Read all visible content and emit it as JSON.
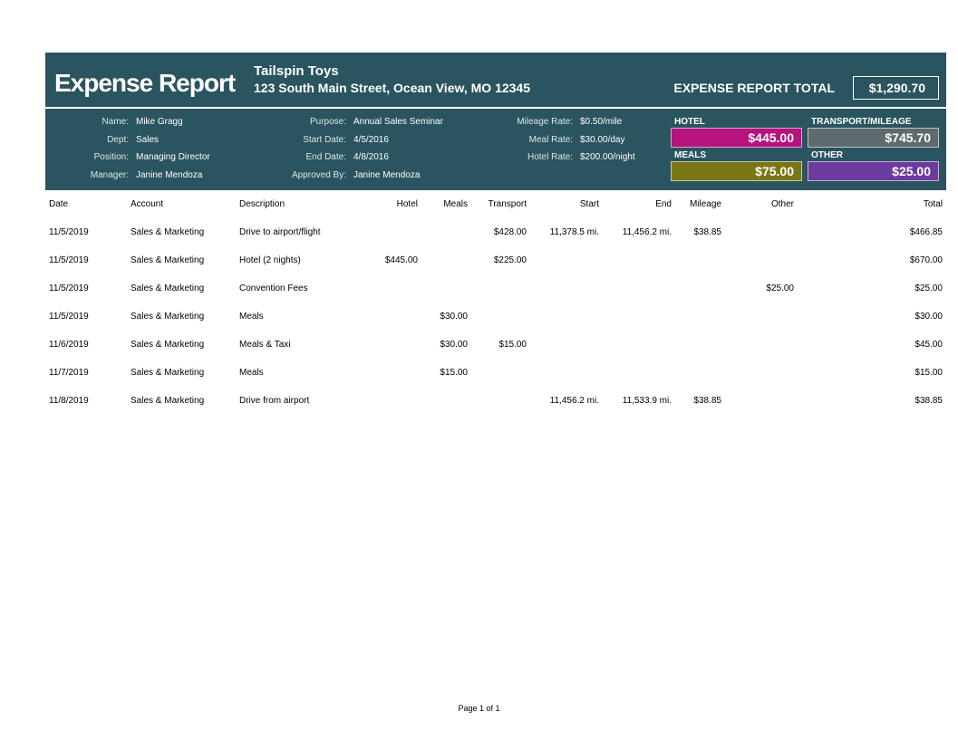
{
  "report": {
    "title": "Expense Report",
    "company_name": "Tailspin Toys",
    "company_address": "123 South Main Street, Ocean View, MO  12345",
    "total_label": "EXPENSE REPORT TOTAL",
    "total_value": "$1,290.70"
  },
  "labels": {
    "name": "Name:",
    "dept": "Dept:",
    "position": "Position:",
    "manager": "Manager:",
    "purpose": "Purpose:",
    "start_date": "Start Date:",
    "end_date": "End Date:",
    "approved_by": "Approved By:",
    "mileage_rate": "Mileage Rate:",
    "meal_rate": "Meal Rate:",
    "hotel_rate": "Hotel Rate:"
  },
  "info": {
    "name": "Mike Gragg",
    "dept": "Sales",
    "position": "Managing Director",
    "manager": "Janine Mendoza",
    "purpose": "Annual Sales Seminar",
    "start_date": "4/5/2016",
    "end_date": "4/8/2016",
    "approved_by": "Janine Mendoza",
    "mileage_rate": "$0.50/mile",
    "meal_rate": "$30.00/day",
    "hotel_rate": "$200.00/night"
  },
  "summary": {
    "hotel": {
      "label": "HOTEL",
      "value": "$445.00",
      "bg": "#b5137d"
    },
    "transport": {
      "label": "TRANSPORT/MILEAGE",
      "value": "$745.70",
      "bg": "#5e6a6d"
    },
    "meals": {
      "label": "MEALS",
      "value": "$75.00",
      "bg": "#7a7616"
    },
    "other": {
      "label": "OTHER",
      "value": "$25.00",
      "bg": "#6d3a9e"
    }
  },
  "columns": {
    "date": "Date",
    "account": "Account",
    "description": "Description",
    "hotel": "Hotel",
    "meals": "Meals",
    "transport": "Transport",
    "start": "Start",
    "end": "End",
    "mileage": "Mileage",
    "other": "Other",
    "total": "Total"
  },
  "rows": [
    {
      "date": "11/5/2019",
      "account": "Sales & Marketing",
      "description": "Drive to airport/flight",
      "hotel": "",
      "meals": "",
      "transport": "$428.00",
      "start": "11,378.5 mi.",
      "end": "11,456.2 mi.",
      "mileage": "$38.85",
      "other": "",
      "total": "$466.85"
    },
    {
      "date": "11/5/2019",
      "account": "Sales & Marketing",
      "description": "Hotel (2 nights)",
      "hotel": "$445.00",
      "meals": "",
      "transport": "$225.00",
      "start": "",
      "end": "",
      "mileage": "",
      "other": "",
      "total": "$670.00"
    },
    {
      "date": "11/5/2019",
      "account": "Sales & Marketing",
      "description": "Convention Fees",
      "hotel": "",
      "meals": "",
      "transport": "",
      "start": "",
      "end": "",
      "mileage": "",
      "other": "$25.00",
      "total": "$25.00"
    },
    {
      "date": "11/5/2019",
      "account": "Sales & Marketing",
      "description": "Meals",
      "hotel": "",
      "meals": "$30.00",
      "transport": "",
      "start": "",
      "end": "",
      "mileage": "",
      "other": "",
      "total": "$30.00"
    },
    {
      "date": "11/6/2019",
      "account": "Sales & Marketing",
      "description": "Meals & Taxi",
      "hotel": "",
      "meals": "$30.00",
      "transport": "$15.00",
      "start": "",
      "end": "",
      "mileage": "",
      "other": "",
      "total": "$45.00"
    },
    {
      "date": "11/7/2019",
      "account": "Sales & Marketing",
      "description": "Meals",
      "hotel": "",
      "meals": "$15.00",
      "transport": "",
      "start": "",
      "end": "",
      "mileage": "",
      "other": "",
      "total": "$15.00"
    },
    {
      "date": "11/8/2019",
      "account": "Sales & Marketing",
      "description": "Drive from airport",
      "hotel": "",
      "meals": "",
      "transport": "",
      "start": "11,456.2 mi.",
      "end": "11,533.9 mi.",
      "mileage": "$38.85",
      "other": "",
      "total": "$38.85"
    }
  ],
  "footer": "Page 1 of 1",
  "style": {
    "header_bg": "#2a545f",
    "header_text": "#ffffff"
  }
}
